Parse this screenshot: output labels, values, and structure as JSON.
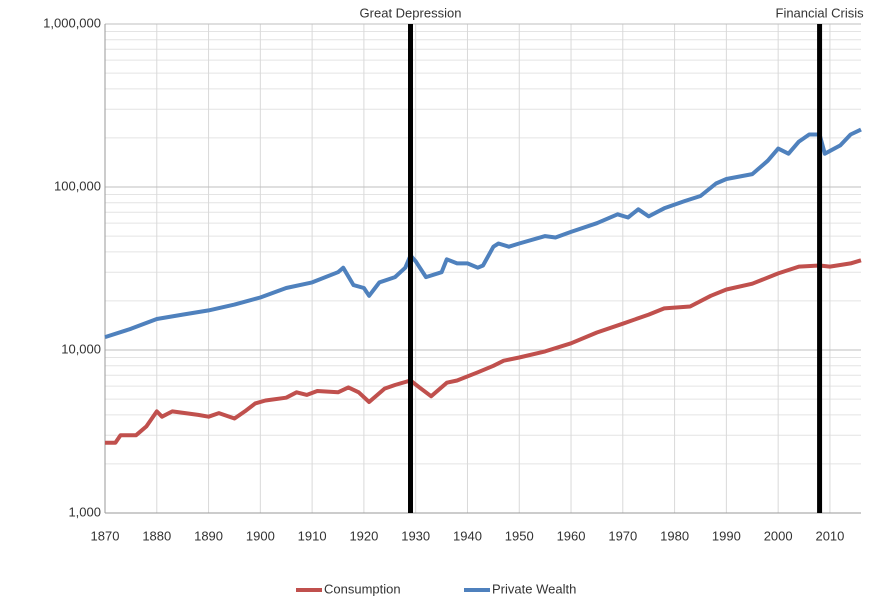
{
  "chart_data": {
    "type": "line",
    "log_y": true,
    "grid": true,
    "legend": "bottom",
    "xlim": [
      1870,
      2016
    ],
    "xticks": [
      1870,
      1880,
      1890,
      1900,
      1910,
      1920,
      1930,
      1940,
      1950,
      1960,
      1970,
      1980,
      1990,
      2000,
      2010
    ],
    "ylim": [
      1000,
      1000000
    ],
    "yticks": [
      {
        "value": 1000,
        "label": "1,000"
      },
      {
        "value": 10000,
        "label": "10,000"
      },
      {
        "value": 100000,
        "label": "100,000"
      },
      {
        "value": 1000000,
        "label": "1,000,000"
      }
    ],
    "annotations": [
      {
        "x": 1929,
        "label": "Great Depression"
      },
      {
        "x": 2008,
        "label": "Financial Crisis"
      }
    ],
    "series": [
      {
        "name": "Consumption",
        "color": "#c0504d",
        "x": [
          1870,
          1872,
          1873,
          1876,
          1878,
          1880,
          1881,
          1883,
          1888,
          1890,
          1892,
          1895,
          1897,
          1899,
          1901,
          1905,
          1907,
          1909,
          1911,
          1915,
          1917,
          1919,
          1921,
          1924,
          1926,
          1929,
          1931,
          1933,
          1936,
          1938,
          1942,
          1945,
          1947,
          1950,
          1955,
          1960,
          1965,
          1970,
          1975,
          1978,
          1983,
          1987,
          1990,
          1995,
          2000,
          2004,
          2008,
          2010,
          2014,
          2016
        ],
        "values": [
          2700,
          2700,
          3000,
          3000,
          3400,
          4200,
          3900,
          4200,
          4000,
          3900,
          4100,
          3800,
          4200,
          4700,
          4900,
          5100,
          5500,
          5300,
          5600,
          5500,
          5900,
          5500,
          4800,
          5800,
          6100,
          6500,
          5800,
          5200,
          6300,
          6500,
          7300,
          8000,
          8600,
          9000,
          9800,
          11000,
          12800,
          14500,
          16500,
          18000,
          18500,
          21500,
          23500,
          25500,
          29500,
          32500,
          33000,
          32500,
          34000,
          35500
        ]
      },
      {
        "name": "Private Wealth",
        "color": "#4f81bd",
        "x": [
          1870,
          1875,
          1880,
          1885,
          1890,
          1895,
          1900,
          1905,
          1910,
          1915,
          1916,
          1918,
          1920,
          1921,
          1923,
          1926,
          1928,
          1929,
          1930,
          1932,
          1935,
          1936,
          1938,
          1940,
          1942,
          1943,
          1945,
          1946,
          1948,
          1950,
          1955,
          1957,
          1960,
          1965,
          1969,
          1971,
          1973,
          1975,
          1978,
          1982,
          1985,
          1988,
          1990,
          1995,
          1998,
          2000,
          2002,
          2004,
          2006,
          2008,
          2009,
          2012,
          2014,
          2016
        ],
        "values": [
          12000,
          13500,
          15500,
          16500,
          17500,
          19000,
          21000,
          24000,
          26000,
          30000,
          32000,
          25000,
          24000,
          21500,
          26000,
          28000,
          32000,
          38000,
          35000,
          28000,
          30000,
          36000,
          34000,
          34000,
          32000,
          33000,
          43000,
          45000,
          43000,
          45000,
          50000,
          49000,
          53000,
          60000,
          68000,
          65000,
          73000,
          66000,
          74000,
          82000,
          88000,
          105000,
          112000,
          120000,
          145000,
          172000,
          160000,
          190000,
          210000,
          210000,
          160000,
          180000,
          210000,
          225000
        ]
      }
    ]
  }
}
